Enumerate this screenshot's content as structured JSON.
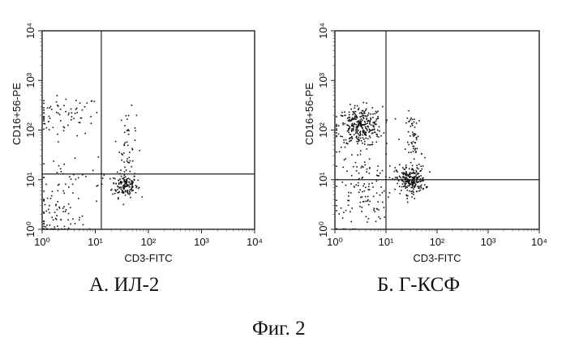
{
  "figure_label": "Фиг. 2",
  "chart_data": [
    {
      "type": "scatter",
      "panel_caption": "А. ИЛ-2",
      "xlabel": "CD3-FITC",
      "ylabel": "CD16+56-PE",
      "x_scale": "log",
      "y_scale": "log",
      "xlim": [
        1,
        10000
      ],
      "ylim": [
        1,
        10000
      ],
      "x_ticks": [
        "10⁰",
        "10¹",
        "10²",
        "10³",
        "10⁴"
      ],
      "y_ticks": [
        "10⁰",
        "10¹",
        "10²",
        "10³",
        "10⁴"
      ],
      "quadrant_gate": {
        "x": 13,
        "y": 13
      },
      "grid": false,
      "populations": [
        {
          "center": [
            2.5,
            200
          ],
          "count": 70,
          "spread": [
            0.35,
            0.2
          ]
        },
        {
          "center": [
            35,
            8
          ],
          "count": 150,
          "spread": [
            0.12,
            0.12
          ]
        },
        {
          "center": [
            40,
            50
          ],
          "count": 45,
          "spread": [
            0.08,
            0.35
          ]
        },
        {
          "center": [
            1.6,
            1.6
          ],
          "count": 80,
          "spread": [
            0.3,
            0.3
          ]
        },
        {
          "center": [
            4,
            12
          ],
          "count": 35,
          "spread": [
            0.45,
            0.3
          ]
        }
      ]
    },
    {
      "type": "scatter",
      "panel_caption": "Б. Г-КСФ",
      "xlabel": "CD3-FITC",
      "ylabel": "CD16+56-PE",
      "x_scale": "log",
      "y_scale": "log",
      "xlim": [
        1,
        10000
      ],
      "ylim": [
        1,
        10000
      ],
      "x_ticks": [
        "10⁰",
        "10¹",
        "10²",
        "10³",
        "10⁴"
      ],
      "y_ticks": [
        "10⁰",
        "10¹",
        "10²",
        "10³",
        "10⁴"
      ],
      "quadrant_gate": {
        "x": 10,
        "y": 10
      },
      "grid": false,
      "populations": [
        {
          "center": [
            3,
            120
          ],
          "count": 320,
          "spread": [
            0.22,
            0.2
          ]
        },
        {
          "center": [
            3.5,
            8
          ],
          "count": 110,
          "spread": [
            0.28,
            0.35
          ]
        },
        {
          "center": [
            30,
            10
          ],
          "count": 220,
          "spread": [
            0.14,
            0.14
          ]
        },
        {
          "center": [
            35,
            60
          ],
          "count": 60,
          "spread": [
            0.08,
            0.3
          ]
        },
        {
          "center": [
            1.8,
            2
          ],
          "count": 20,
          "spread": [
            0.3,
            0.3
          ]
        }
      ]
    }
  ]
}
